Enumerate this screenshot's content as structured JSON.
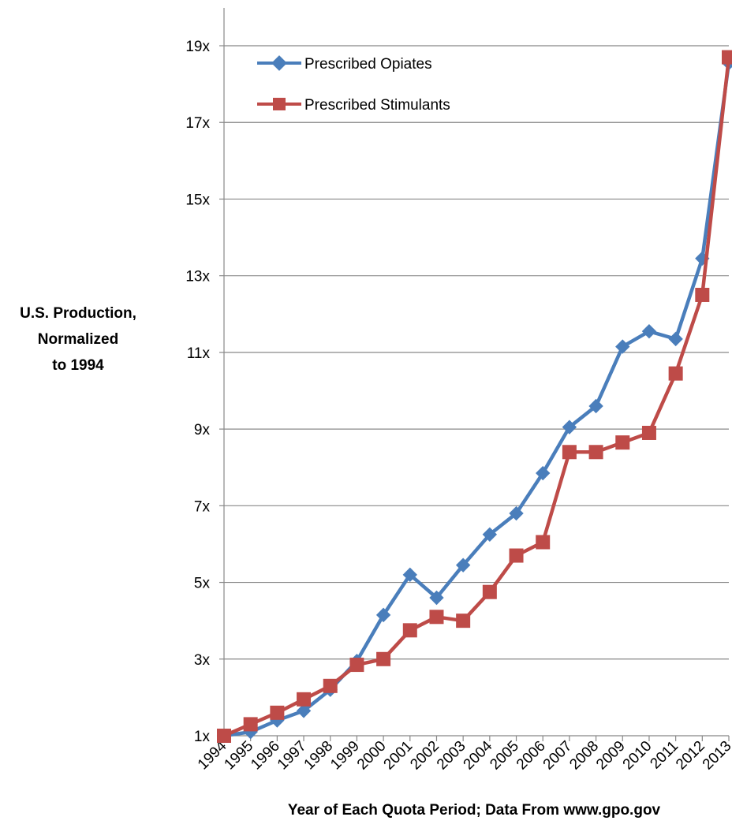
{
  "chart_data": {
    "type": "line",
    "title": "",
    "ylabel_lines": [
      "U.S. Production,",
      "Normalized",
      "to 1994"
    ],
    "xlabel": "Year of Each Quota Period; Data From www.gpo.gov",
    "ylim": [
      1,
      20
    ],
    "y_ticks": [
      1,
      3,
      5,
      7,
      9,
      11,
      13,
      15,
      17,
      19
    ],
    "y_tick_labels": [
      "1x",
      "3x",
      "5x",
      "7x",
      "9x",
      "11x",
      "13x",
      "15x",
      "17x",
      "19x"
    ],
    "grid": true,
    "legend_position": "top-left",
    "categories": [
      "1994",
      "1995",
      "1996",
      "1997",
      "1998",
      "1999",
      "2000",
      "2001",
      "2002",
      "2003",
      "2004",
      "2005",
      "2006",
      "2007",
      "2008",
      "2009",
      "2010",
      "2011",
      "2012",
      "2013"
    ],
    "series": [
      {
        "name": "Prescribed Opiates",
        "color": "#4a7ebb",
        "marker": "diamond",
        "values": [
          1.0,
          1.1,
          1.4,
          1.65,
          2.2,
          2.95,
          4.15,
          5.2,
          4.6,
          5.45,
          6.25,
          6.8,
          7.85,
          9.05,
          9.6,
          11.15,
          11.55,
          11.35,
          13.45,
          18.55
        ]
      },
      {
        "name": "Prescribed Stimulants",
        "color": "#be4b48",
        "marker": "square",
        "values": [
          1.0,
          1.3,
          1.6,
          1.95,
          2.3,
          2.85,
          3.0,
          3.75,
          4.1,
          4.0,
          4.75,
          5.7,
          6.05,
          8.4,
          8.4,
          8.65,
          8.9,
          10.45,
          12.5,
          18.7
        ]
      }
    ]
  }
}
